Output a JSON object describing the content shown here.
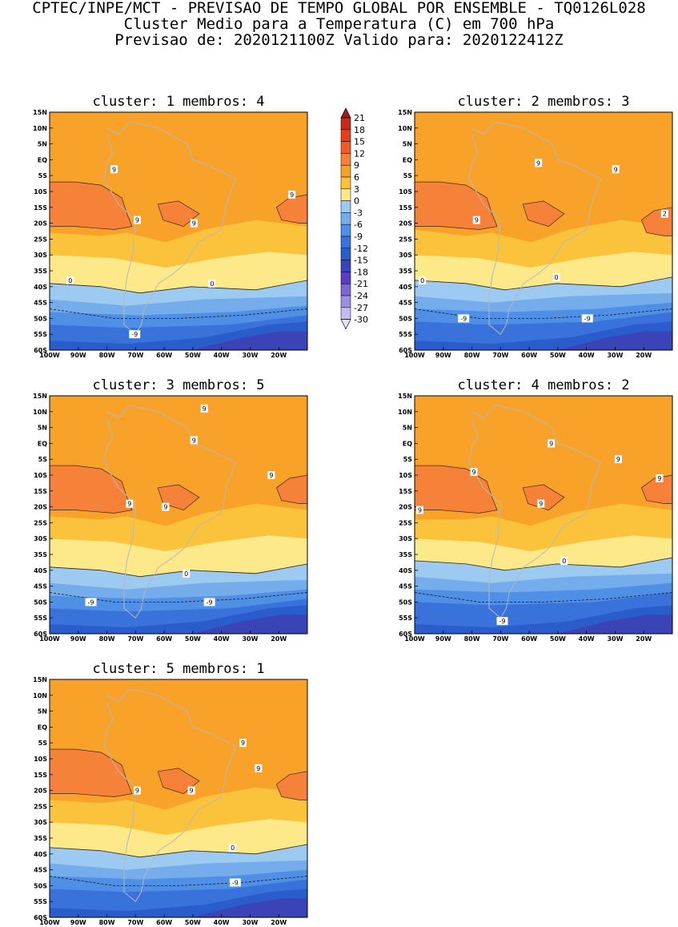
{
  "header": {
    "line1": "CPTEC/INPE/MCT - PREVISAO DE TEMPO GLOBAL POR ENSEMBLE - TQ0126L028",
    "line2": "Cluster Medio para a Temperatura (C) em 700 hPa",
    "line3": "Previsao de: 2020121100Z   Valido para: 2020122412Z"
  },
  "chart_data": {
    "type": "heatmap",
    "variable": "Temperatura (C) em 700 hPa",
    "x_ticks": [
      "100W",
      "90W",
      "80W",
      "70W",
      "60W",
      "50W",
      "40W",
      "30W",
      "20W"
    ],
    "y_ticks": [
      "15N",
      "10N",
      "5N",
      "EQ",
      "5S",
      "10S",
      "15S",
      "20S",
      "25S",
      "30S",
      "35S",
      "40S",
      "45S",
      "50S",
      "55S",
      "60S"
    ],
    "lon_range": [
      -100,
      -10
    ],
    "lat_range": [
      -60,
      15
    ],
    "colorbar": {
      "levels": [
        "21",
        "18",
        "15",
        "12",
        "9",
        "6",
        "3",
        "0",
        "-3",
        "-6",
        "-9",
        "-12",
        "-15",
        "-18",
        "-21",
        "-24",
        "-27",
        "-30"
      ],
      "colors": [
        "#a01c1c",
        "#c42a1e",
        "#e0401c",
        "#f05a24",
        "#f6823a",
        "#f8a22a",
        "#fbc23c",
        "#fde88a",
        "#9ccaf0",
        "#74acec",
        "#4f8fe6",
        "#3872da",
        "#2a5ccc",
        "#3a44b6",
        "#5a3ec0",
        "#7b66d6",
        "#9e8fe2",
        "#c4bcf0",
        "#e6e3f8"
      ]
    },
    "panels": [
      {
        "cluster": "1",
        "membros": "4",
        "title": "cluster: 1   membros: 4",
        "labels": [
          "9",
          "9",
          "9",
          "9",
          "0",
          "0",
          "-9"
        ],
        "isotherms_lat": {
          "9": -18,
          "0": -39,
          "-9": -50
        }
      },
      {
        "cluster": "2",
        "membros": "3",
        "title": "cluster: 2   membros: 3",
        "labels": [
          "9",
          "9",
          "9",
          "2",
          "0",
          "0",
          "-9",
          "-9"
        ],
        "isotherms_lat": {
          "9": -18,
          "0": -38,
          "-9": -50
        }
      },
      {
        "cluster": "3",
        "membros": "5",
        "title": "cluster: 3   membros: 5",
        "labels": [
          "9",
          "9",
          "9",
          "9",
          "9",
          "0",
          "-9",
          "-9"
        ],
        "isotherms_lat": {
          "9": -18,
          "0": -39,
          "-9": -50
        }
      },
      {
        "cluster": "4",
        "membros": "2",
        "title": "cluster: 4   membros: 2",
        "labels": [
          "9",
          "9",
          "9",
          "9",
          "9",
          "9",
          "0",
          "-9"
        ],
        "isotherms_lat": {
          "9": -18,
          "0": -37,
          "-9": -52
        }
      },
      {
        "cluster": "5",
        "membros": "1",
        "title": "cluster: 5   membros: 1",
        "labels": [
          "9",
          "9",
          "9",
          "9",
          "0",
          "-9"
        ],
        "isotherms_lat": {
          "9": -18,
          "0": -38,
          "-9": -49
        }
      }
    ]
  }
}
